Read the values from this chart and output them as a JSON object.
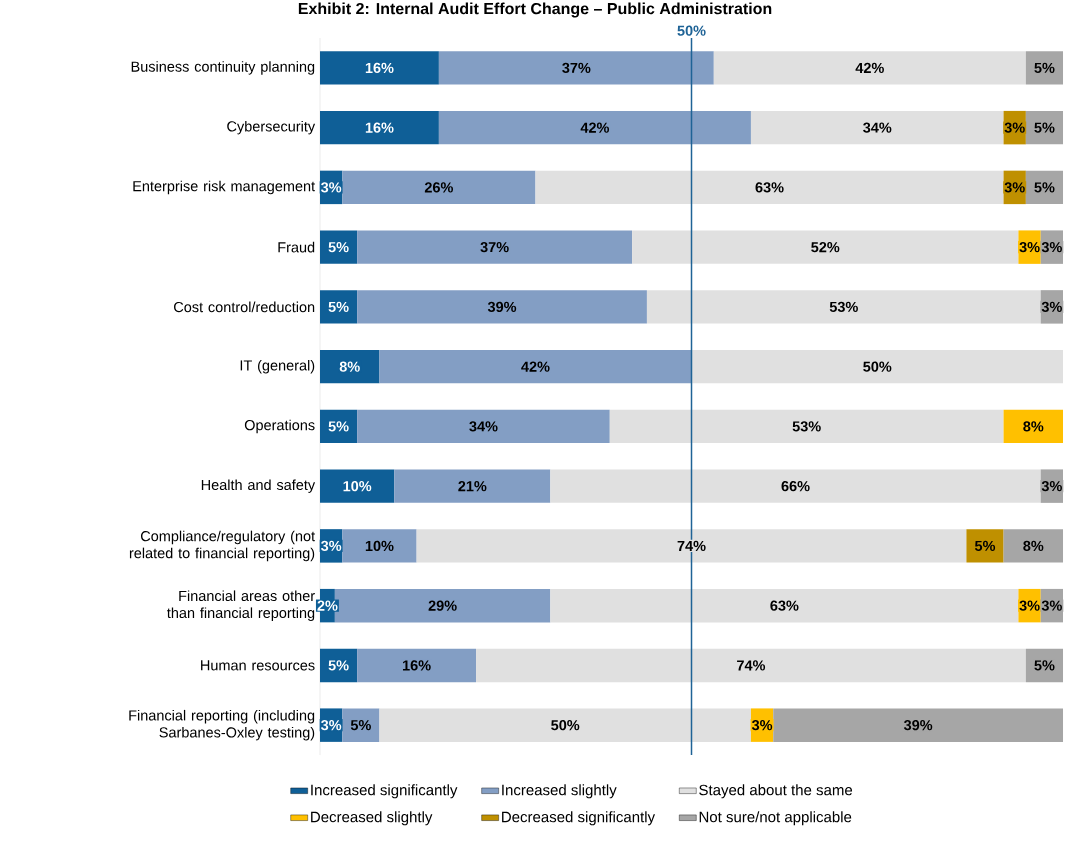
{
  "chart_data": {
    "type": "bar",
    "title": "Exhibit 2: Internal Audit Effort Change – Public Administration",
    "orientation": "horizontal",
    "stacked": true,
    "xlim": [
      0,
      100
    ],
    "tick_labels": "y",
    "legend": "bottom",
    "categories": [
      "Business continuity planning",
      "Cybersecurity",
      "Enterprise risk management",
      "Fraud",
      "Cost control/reduction",
      "IT (general)",
      "Operations",
      "Health and safety",
      "Compliance/regulatory (not related to financial reporting)",
      "Financial areas other than financial reporting",
      "Human resources",
      "Financial reporting (including Sarbanes-Oxley testing)"
    ],
    "series": [
      {
        "name": "Increased significantly",
        "color": "#0f5f97",
        "values": [
          16,
          16,
          3,
          5,
          5,
          8,
          5,
          10,
          3,
          2,
          5,
          3
        ],
        "value_labels": [
          "16%",
          "16%",
          "3%",
          "5%",
          "5%",
          "8%",
          "5%",
          "10%",
          "3%",
          "2%",
          "5%",
          "3%"
        ]
      },
      {
        "name": "Increased slightly",
        "color": "#839ec4",
        "values": [
          37,
          42,
          26,
          37,
          39,
          42,
          34,
          21,
          10,
          29,
          16,
          5
        ],
        "value_labels": [
          "37%",
          "42%",
          "26%",
          "37%",
          "39%",
          "42%",
          "34%",
          "21%",
          "10%",
          "29%",
          "16%",
          "5%"
        ]
      },
      {
        "name": "Stayed about the same",
        "color": "#e0e0e0",
        "values": [
          42,
          34,
          63,
          52,
          53,
          50,
          53,
          66,
          74,
          63,
          74,
          50
        ],
        "value_labels": [
          "42%",
          "34%",
          "63%",
          "52%",
          "53%",
          "50%",
          "53%",
          "66%",
          "74%",
          "63%",
          "74%",
          "50%"
        ]
      },
      {
        "name": "Decreased slightly",
        "color": "#ffc000",
        "values": [
          null,
          null,
          null,
          3,
          null,
          null,
          8,
          null,
          null,
          3,
          null,
          3
        ],
        "value_labels": [
          null,
          null,
          null,
          "3%",
          null,
          null,
          "8%",
          null,
          null,
          "3%",
          null,
          "3%"
        ]
      },
      {
        "name": "Decreased significantly",
        "color": "#bf9000",
        "values": [
          null,
          3,
          3,
          null,
          null,
          null,
          null,
          null,
          5,
          null,
          null,
          null
        ],
        "value_labels": [
          null,
          "3%",
          "3%",
          null,
          null,
          null,
          null,
          null,
          "5%",
          null,
          null,
          null
        ]
      },
      {
        "name": "Not sure/not applicable",
        "color": "#a6a6a6",
        "values": [
          5,
          5,
          5,
          3,
          3,
          null,
          null,
          3,
          8,
          3,
          5,
          39
        ],
        "value_labels": [
          "5%",
          "5%",
          "5%",
          "3%",
          "3%",
          null,
          null,
          "3%",
          "8%",
          "3%",
          "5%",
          "39%"
        ]
      }
    ],
    "ref_lines": [
      {
        "axis": "x",
        "value": 50,
        "label": "50%",
        "color": "#1f6396"
      }
    ]
  }
}
